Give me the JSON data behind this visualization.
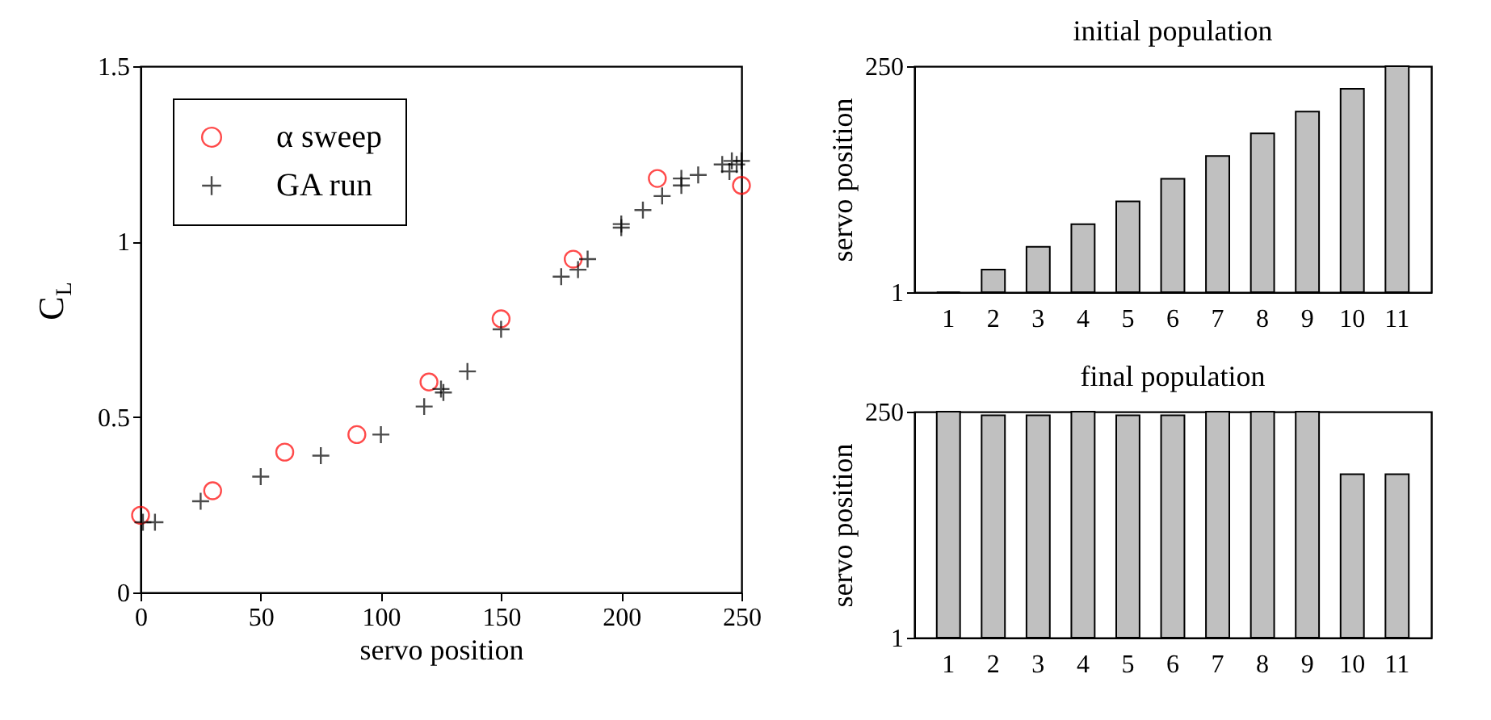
{
  "chart_data": [
    {
      "type": "scatter",
      "xlabel": "servo position",
      "ylabel": "C$_{L}$",
      "xlim": [
        0,
        250
      ],
      "ylim": [
        0,
        1.5
      ],
      "xticks": [
        0,
        50,
        100,
        150,
        200,
        250
      ],
      "yticks": [
        0,
        0.5,
        1,
        1.5
      ],
      "grid": false,
      "legend": "top left",
      "series": [
        {
          "name": "α sweep",
          "color": "#ff0000",
          "marker": "circle",
          "x": [
            0,
            30,
            60,
            90,
            120,
            150,
            180,
            215,
            250
          ],
          "values": [
            0.22,
            0.29,
            0.4,
            0.45,
            0.6,
            0.78,
            0.95,
            1.18,
            1.16
          ]
        },
        {
          "name": "GA run",
          "color": "#000000",
          "marker": "cross",
          "x": [
            1,
            6,
            25,
            50,
            75,
            100,
            118,
            125,
            126,
            136,
            150,
            175,
            182,
            186,
            200,
            200,
            209,
            217,
            225,
            225,
            232,
            242,
            245,
            246,
            248,
            250
          ],
          "values": [
            0.2,
            0.2,
            0.26,
            0.33,
            0.39,
            0.45,
            0.53,
            0.58,
            0.57,
            0.63,
            0.75,
            0.9,
            0.92,
            0.95,
            1.05,
            1.04,
            1.09,
            1.13,
            1.16,
            1.18,
            1.19,
            1.22,
            1.2,
            1.23,
            1.22,
            1.23
          ]
        }
      ]
    },
    {
      "type": "bar",
      "title": "initial population",
      "ylabel": "servo position",
      "categories": [
        "1",
        "2",
        "3",
        "4",
        "5",
        "6",
        "7",
        "8",
        "9",
        "10",
        "11"
      ],
      "values": [
        1,
        26,
        51,
        76,
        101,
        126,
        151,
        176,
        200,
        225,
        250
      ],
      "color": "#c0c0c0",
      "ylim": [
        1,
        250
      ],
      "yticks": [
        1,
        250
      ],
      "grid": false
    },
    {
      "type": "bar",
      "title": "final population",
      "ylabel": "servo position",
      "categories": [
        "1",
        "2",
        "3",
        "4",
        "5",
        "6",
        "7",
        "8",
        "9",
        "10",
        "11"
      ],
      "values": [
        250,
        246,
        246,
        250,
        246,
        246,
        250,
        250,
        250,
        181,
        181
      ],
      "color": "#c0c0c0",
      "ylim": [
        1,
        250
      ],
      "yticks": [
        1,
        250
      ],
      "grid": false
    }
  ]
}
